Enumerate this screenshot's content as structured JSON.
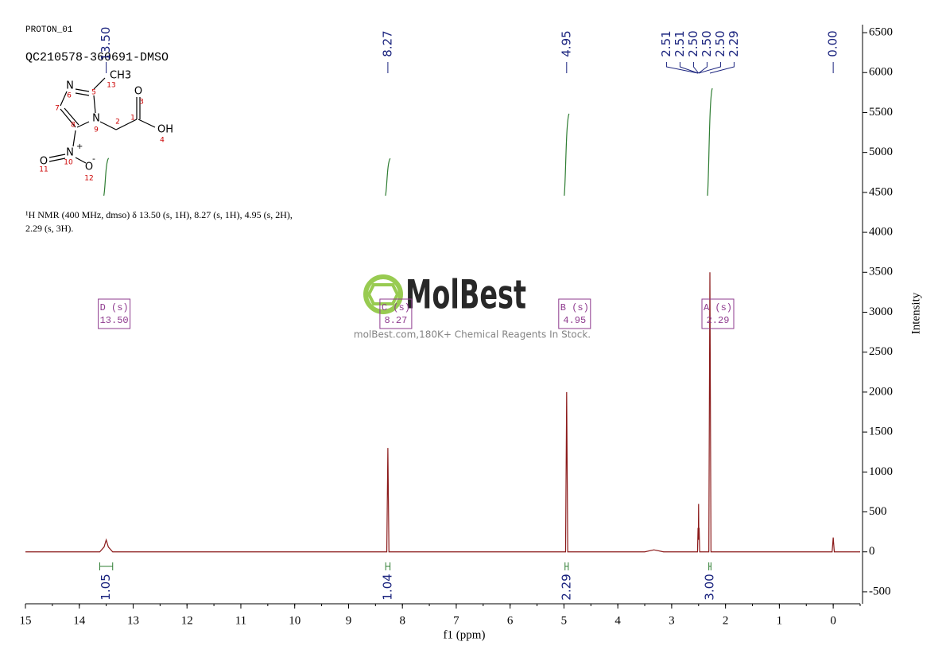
{
  "chart_data": {
    "type": "nmr",
    "header": [
      "PROTON_01",
      "QC210578-360691-DMSO"
    ],
    "description": [
      "¹H NMR (400 MHz, dmso) δ 13.50 (s, 1H), 8.27 (s, 1H), 4.95 (s, 2H),",
      "2.29 (s, 3H)."
    ],
    "watermark": {
      "brand": "MolBest",
      "tagline": "molBest.com,180K+ Chemical Reagents In Stock."
    },
    "molecule": [
      "N",
      "5",
      "6",
      "CH3",
      "13",
      "7",
      "8",
      "N",
      "9",
      "2",
      "1",
      "O",
      "3",
      "OH",
      "4",
      "N",
      "+",
      "10",
      "O",
      "11",
      "O",
      "-",
      "12"
    ],
    "x_label": "f1 (ppm)",
    "y_label": "Intensity",
    "xlim": [
      15,
      -0.5
    ],
    "xticks": [
      15,
      14,
      13,
      12,
      11,
      10,
      9,
      8,
      7,
      6,
      5,
      4,
      3,
      2,
      1,
      0
    ],
    "ylim": [
      -650,
      6600
    ],
    "yticks": [
      6500,
      6000,
      5500,
      5000,
      4500,
      4000,
      3500,
      3000,
      2500,
      2000,
      1500,
      1000,
      500,
      0,
      -500
    ],
    "series": [
      {
        "name": "spectrum",
        "color": "#8b1a1a",
        "x": [
          15,
          13.62,
          13.54,
          13.5,
          13.46,
          13.38,
          8.29,
          8.27,
          8.25,
          4.97,
          4.95,
          4.93,
          3.5,
          3.33,
          3.15,
          2.52,
          2.51,
          2.505,
          2.5,
          2.495,
          2.49,
          2.48,
          2.31,
          2.29,
          2.27,
          0.02,
          0,
          -0.02,
          -0.5
        ],
        "values": [
          0,
          0,
          60,
          150,
          60,
          0,
          0,
          1300,
          0,
          0,
          2000,
          0,
          0,
          25,
          0,
          0,
          300,
          150,
          600,
          150,
          300,
          0,
          0,
          3500,
          0,
          0,
          180,
          0,
          0
        ]
      }
    ],
    "peak_labels": [
      {
        "value": 13.5,
        "label": "13.50"
      },
      {
        "value": 8.27,
        "label": "8.27"
      },
      {
        "value": 4.95,
        "label": "4.95"
      },
      {
        "value": 2.51,
        "label": "2.51"
      },
      {
        "value": 2.51,
        "label": "2.51"
      },
      {
        "value": 2.5,
        "label": "2.50"
      },
      {
        "value": 2.5,
        "label": "2.50"
      },
      {
        "value": 2.5,
        "label": "2.50"
      },
      {
        "value": 2.29,
        "label": "2.29"
      },
      {
        "value": 0,
        "label": "0.00"
      }
    ],
    "integrals": [
      {
        "from": 13.62,
        "to": 13.38,
        "value": 1.05
      },
      {
        "from": 8.31,
        "to": 8.23,
        "value": 1.04
      },
      {
        "from": 4.98,
        "to": 4.92,
        "value": 2.29
      },
      {
        "from": 2.31,
        "to": 2.27,
        "value": {
          "value": 3,
          "label": "3.00"
        }
      }
    ],
    "multiplets": [
      {
        "name": "D (s)",
        "shift": {
          "value": 13.5,
          "label": "13.50"
        }
      },
      {
        "name": "C (s)",
        "shift": {
          "value": 8.27,
          "label": "8.27"
        }
      },
      {
        "name": "B (s)",
        "shift": {
          "value": 4.95,
          "label": "4.95"
        }
      },
      {
        "name": "A (s)",
        "shift": {
          "value": 2.29,
          "label": "2.29"
        }
      }
    ]
  }
}
